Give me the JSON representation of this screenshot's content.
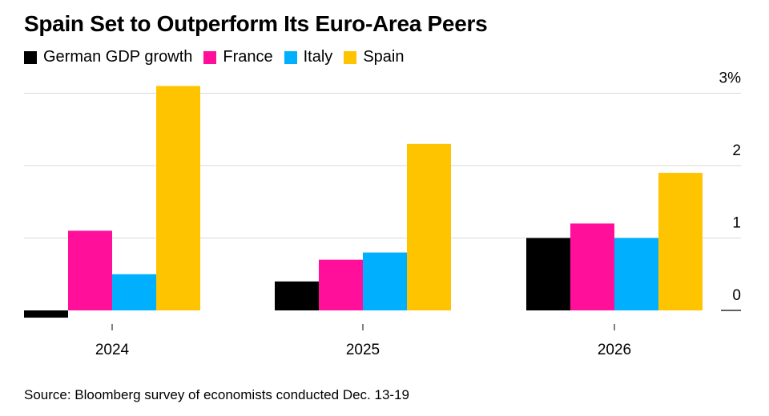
{
  "title": "Spain Set to Outperform Its Euro-Area Peers",
  "source": "Source: Bloomberg survey of economists conducted Dec. 13-19",
  "chart_data": {
    "type": "bar",
    "categories": [
      "2024",
      "2025",
      "2026"
    ],
    "series": [
      {
        "name": "German GDP growth",
        "color": "#000000",
        "values": [
          -0.1,
          0.4,
          1.0
        ]
      },
      {
        "name": "France",
        "color": "#ff0f9a",
        "values": [
          1.1,
          0.7,
          1.2
        ]
      },
      {
        "name": "Italy",
        "color": "#00b0ff",
        "values": [
          0.5,
          0.8,
          1.0
        ]
      },
      {
        "name": "Spain",
        "color": "#ffc400",
        "values": [
          3.1,
          2.3,
          1.9
        ]
      }
    ],
    "ylim": [
      0,
      3
    ],
    "yticks": [
      {
        "value": 0,
        "label": "0"
      },
      {
        "value": 1,
        "label": "1"
      },
      {
        "value": 2,
        "label": "2"
      },
      {
        "value": 3,
        "label": "3%"
      }
    ],
    "grid": true,
    "legend": "top-left",
    "y_axis_side": "right"
  }
}
